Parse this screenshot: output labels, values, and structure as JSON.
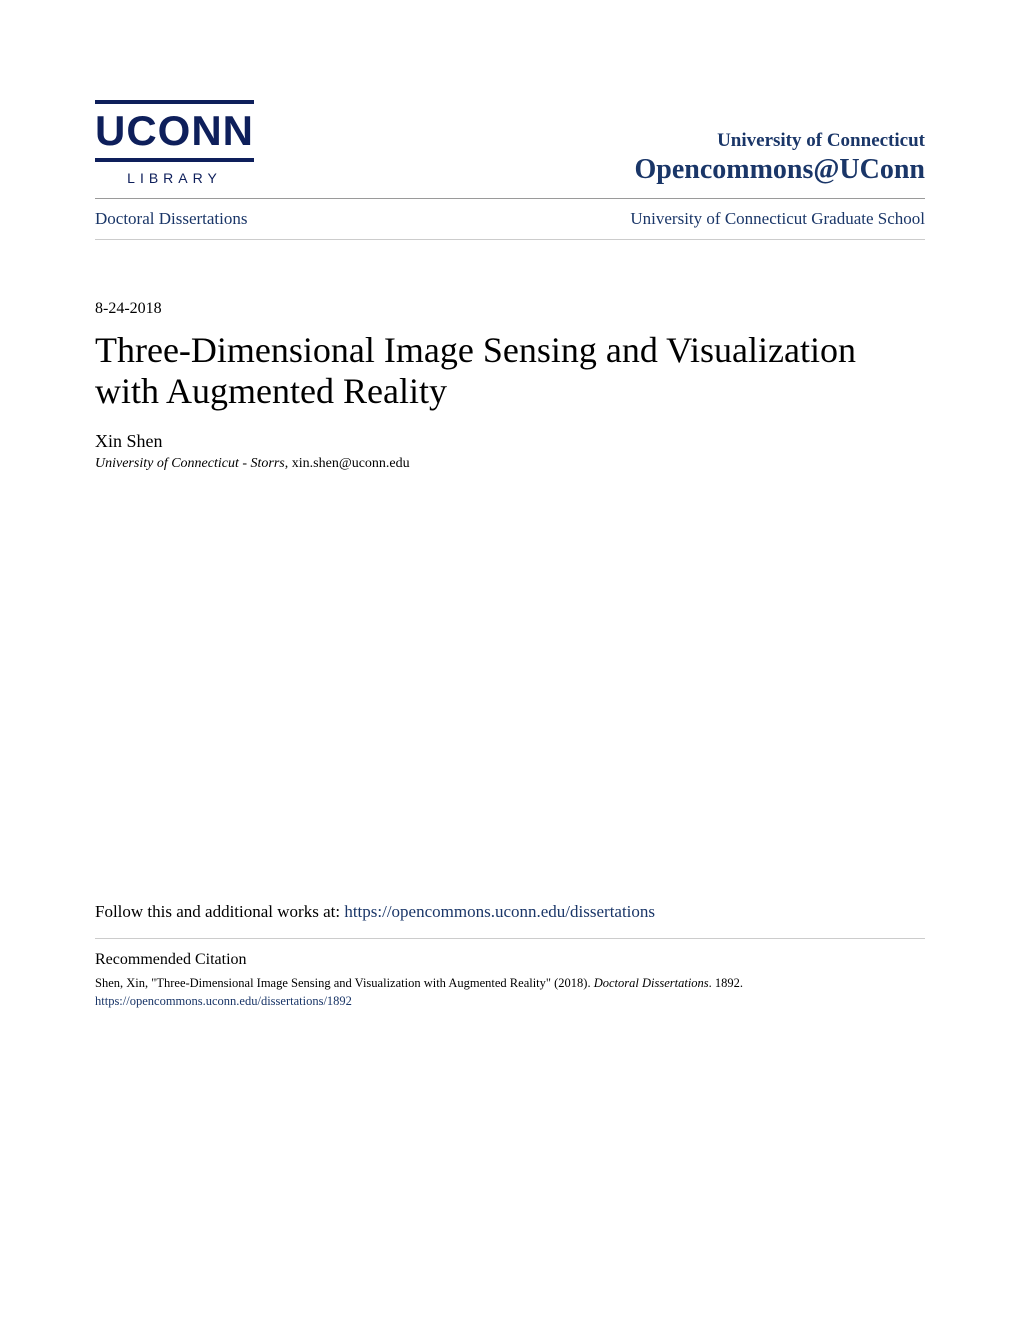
{
  "logo": {
    "wordmark": "UCONN",
    "subtext": "LIBRARY",
    "color": "#0e1f5b"
  },
  "institution": {
    "name": "University of Connecticut",
    "repository": "Opencommons@UConn",
    "color": "#1a3668"
  },
  "breadcrumb": {
    "left": "Doctoral Dissertations",
    "right": "University of Connecticut Graduate School"
  },
  "date": "8-24-2018",
  "title": "Three-Dimensional Image Sensing and Visualization with Augmented Reality",
  "author": {
    "name": "Xin Shen",
    "affiliation": "University of Connecticut - Storrs",
    "email": "xin.shen@uconn.edu"
  },
  "follow": {
    "prefix": "Follow this and additional works at: ",
    "url": "https://opencommons.uconn.edu/dissertations"
  },
  "citation": {
    "heading": "Recommended Citation",
    "text_prefix": "Shen, Xin, \"Three-Dimensional Image Sensing and Visualization with Augmented Reality\" (2018). ",
    "series": "Doctoral Dissertations",
    "text_suffix": ". 1892.",
    "url": "https://opencommons.uconn.edu/dissertations/1892"
  },
  "colors": {
    "link": "#1a3668",
    "text": "#000000",
    "divider_strong": "#9a9a9a",
    "divider_light": "#cccccc",
    "background": "#ffffff"
  },
  "typography": {
    "title_fontsize": 36,
    "body_fontsize": 17,
    "small_fontsize": 13,
    "font_family": "Georgia, serif"
  }
}
